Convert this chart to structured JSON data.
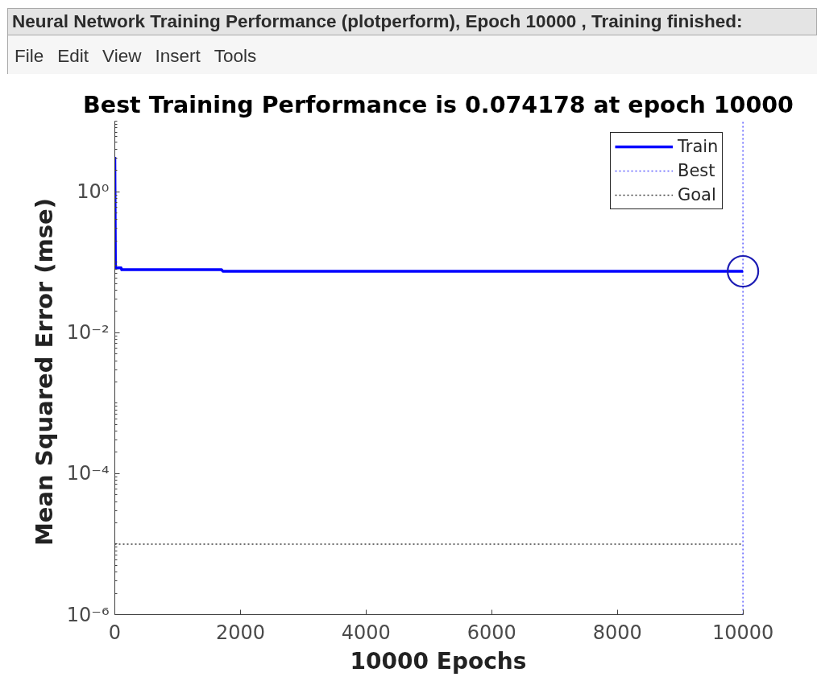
{
  "chart_data": {
    "type": "line",
    "title": "Best Training Performance is 0.074178 at epoch 10000",
    "xlabel": "10000 Epochs",
    "ylabel": "Mean Squared Error  (mse)",
    "annotations": [
      "Neural Network Training Performance (plotperform), Epoch 10000 , Training finished:",
      "File",
      "Edit",
      "View",
      "Insert",
      "Tools"
    ],
    "series": [
      {
        "name": "Train",
        "color": "#0000ff",
        "x": [
          0,
          10,
          100,
          110,
          1700,
          1720,
          10000
        ],
        "values": [
          3.1,
          0.083,
          0.083,
          0.078,
          0.078,
          0.074178,
          0.074178
        ]
      },
      {
        "type": "scatter",
        "marker": "circle",
        "color": "#1c1cb4",
        "x": [
          10000
        ],
        "values": [
          0.074178
        ]
      }
    ],
    "ref_lines": [
      {
        "axis": "x",
        "value": 10000,
        "label": "Best",
        "color": "#5c5cff",
        "line_style": "dotted"
      },
      {
        "axis": "y",
        "value": 1e-05,
        "label": "Goal",
        "color": "#404040",
        "line_style": "dotted"
      }
    ],
    "xlim": [
      0,
      10000
    ],
    "xticks": [
      0,
      2000,
      4000,
      6000,
      8000,
      10000
    ],
    "ylim": [
      1e-06,
      10
    ],
    "yticks": [
      {
        "value": 1e-06,
        "label": "10⁻⁶"
      },
      {
        "value": 2e-06,
        "label": null
      },
      {
        "value": 3e-06,
        "label": null
      },
      {
        "value": 4e-06,
        "label": null
      },
      {
        "value": 5e-06,
        "label": null
      },
      {
        "value": 6e-06,
        "label": null
      },
      {
        "value": 7e-06,
        "label": null
      },
      {
        "value": 8e-06,
        "label": null
      },
      {
        "value": 9e-06,
        "label": null
      },
      {
        "value": 1e-05,
        "label": null
      },
      {
        "value": 2e-05,
        "label": null
      },
      {
        "value": 3e-05,
        "label": null
      },
      {
        "value": 4e-05,
        "label": null
      },
      {
        "value": 5e-05,
        "label": null
      },
      {
        "value": 6e-05,
        "label": null
      },
      {
        "value": 7e-05,
        "label": null
      },
      {
        "value": 8e-05,
        "label": null
      },
      {
        "value": 9e-05,
        "label": null
      },
      {
        "value": 0.0001,
        "label": "10⁻⁴"
      },
      {
        "value": 0.0002,
        "label": null
      },
      {
        "value": 0.0003,
        "label": null
      },
      {
        "value": 0.0004,
        "label": null
      },
      {
        "value": 0.0005,
        "label": null
      },
      {
        "value": 0.0006,
        "label": null
      },
      {
        "value": 0.0007,
        "label": null
      },
      {
        "value": 0.0008,
        "label": null
      },
      {
        "value": 0.0009,
        "label": null
      },
      {
        "value": 0.001,
        "label": null
      },
      {
        "value": 0.002,
        "label": null
      },
      {
        "value": 0.003,
        "label": null
      },
      {
        "value": 0.004,
        "label": null
      },
      {
        "value": 0.005,
        "label": null
      },
      {
        "value": 0.006,
        "label": null
      },
      {
        "value": 0.007,
        "label": null
      },
      {
        "value": 0.008,
        "label": null
      },
      {
        "value": 0.009,
        "label": null
      },
      {
        "value": 0.01,
        "label": "10⁻²"
      },
      {
        "value": 0.02,
        "label": null
      },
      {
        "value": 0.03,
        "label": null
      },
      {
        "value": 0.04,
        "label": null
      },
      {
        "value": 0.05,
        "label": null
      },
      {
        "value": 0.06,
        "label": null
      },
      {
        "value": 0.07,
        "label": null
      },
      {
        "value": 0.08,
        "label": null
      },
      {
        "value": 0.09,
        "label": null
      },
      {
        "value": 0.1,
        "label": null
      },
      {
        "value": 0.2,
        "label": null
      },
      {
        "value": 0.3,
        "label": null
      },
      {
        "value": 0.4,
        "label": null
      },
      {
        "value": 0.5,
        "label": null
      },
      {
        "value": 0.6,
        "label": null
      },
      {
        "value": 0.7,
        "label": null
      },
      {
        "value": 0.8,
        "label": null
      },
      {
        "value": 0.9,
        "label": null
      },
      {
        "value": 1,
        "label": "10⁰"
      },
      {
        "value": 2,
        "label": null
      },
      {
        "value": 3,
        "label": null
      },
      {
        "value": 4,
        "label": null
      },
      {
        "value": 5,
        "label": null
      },
      {
        "value": 6,
        "label": null
      },
      {
        "value": 7,
        "label": null
      },
      {
        "value": 8,
        "label": null
      },
      {
        "value": 9,
        "label": null
      },
      {
        "value": 10,
        "label": null
      }
    ],
    "log": "y",
    "grid": false,
    "legend": "top right"
  }
}
